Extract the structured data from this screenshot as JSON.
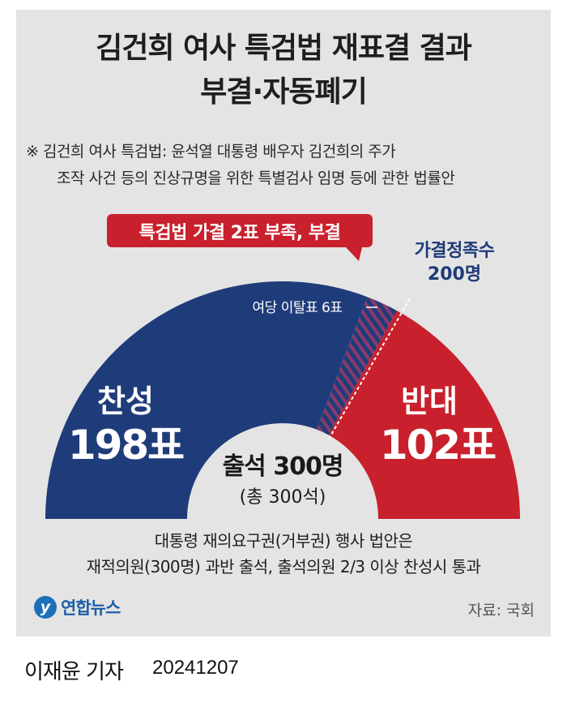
{
  "title_line1": "김건희 여사 특검법 재표결 결과",
  "title_line2": "부결·자동폐기",
  "note_line1": "※ 김건희 여사 특검법: 윤석열 대통령 배우자 김건희의 주가",
  "note_line2": "조작 사건 등의 진상규명을 위한 특별검사 임명 등에 관한 법률안",
  "callout": "특검법 가결 2표 부족, 부결",
  "threshold_label_line1": "가결정족수",
  "threshold_label_line2": "200명",
  "defection_label": "여당 이탈표 6표",
  "center_line1": "출석 300명",
  "center_line2": "(총 300석)",
  "bottom_line1": "대통령 재의요구권(거부권) 행사 법안은",
  "bottom_line2": "재적의원(300명) 과반 출석, 출석의원 2/3 이상 찬성시 통과",
  "logo_mark": "y",
  "logo_text": "연합뉴스",
  "source": "자료: 국회",
  "reporter": "이재윤 기자",
  "date": "20241207",
  "colors": {
    "yes": "#1f3c7a",
    "no": "#c8202c",
    "stripe": "#8a3a6a",
    "callout": "#c8202c"
  },
  "chart_data": {
    "type": "pie",
    "subtype": "semicircle",
    "total": 300,
    "threshold": 200,
    "segments": [
      {
        "name": "찬성",
        "value_label": "198표",
        "value": 198
      },
      {
        "name": "반대",
        "value_label": "102표",
        "value": 102
      }
    ],
    "defection_votes": 6
  }
}
